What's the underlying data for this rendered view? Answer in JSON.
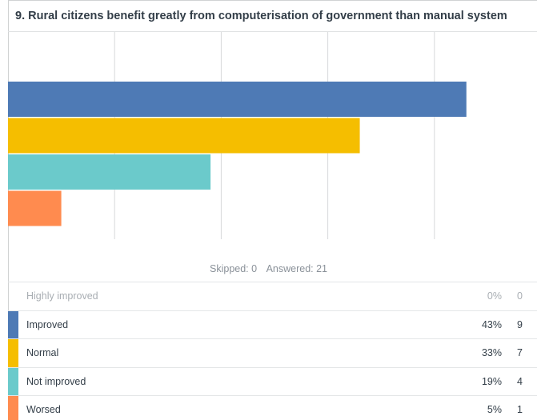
{
  "question": {
    "title": "9. Rural citizens benefit greatly from computerisation of government than manual system"
  },
  "summary": {
    "skipped": "Skipped: 0",
    "answered": "Answered: 21"
  },
  "table": {
    "rows": [
      {
        "label": "Highly improved",
        "percent": "0%",
        "count": "0",
        "color": ""
      },
      {
        "label": "Improved",
        "percent": "43%",
        "count": "9",
        "color": "#4e7ab5"
      },
      {
        "label": "Normal",
        "percent": "33%",
        "count": "7",
        "color": "#f5be00"
      },
      {
        "label": "Not improved",
        "percent": "19%",
        "count": "4",
        "color": "#6bcacb"
      },
      {
        "label": "Worsed",
        "percent": "5%",
        "count": "1",
        "color": "#ff8b4f"
      }
    ]
  },
  "chart_data": {
    "type": "bar",
    "orientation": "horizontal",
    "categories": [
      "Improved",
      "Normal",
      "Not improved",
      "Worsed"
    ],
    "values": [
      43,
      33,
      19,
      5
    ],
    "colors": [
      "#4e7ab5",
      "#f5be00",
      "#6bcacb",
      "#ff8b4f"
    ],
    "xlim": [
      0,
      50
    ],
    "grid": true,
    "title": "9. Rural citizens benefit greatly from computerisation of government than manual system",
    "xlabel": "",
    "ylabel": ""
  }
}
